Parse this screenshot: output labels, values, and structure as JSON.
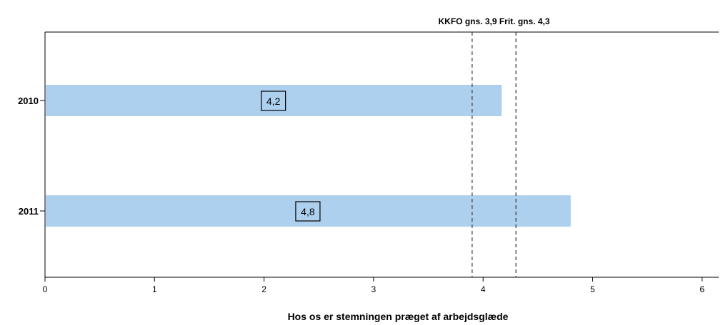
{
  "chart_data": {
    "type": "bar",
    "orientation": "horizontal",
    "categories": [
      "2010",
      "2011"
    ],
    "values": [
      4.17,
      4.8
    ],
    "data_labels": [
      "4,2",
      "4,8"
    ],
    "bar_color": "#aed0ef",
    "xlabel": "Hos os er stemningen præget af arbejdsglæde",
    "xlim": [
      0,
      6.2
    ],
    "xticks": [
      0,
      1,
      2,
      3,
      4,
      5,
      6
    ],
    "xtick_labels": [
      "0",
      "1",
      "2",
      "3",
      "4",
      "5",
      "6"
    ],
    "reference_lines": [
      {
        "value": 3.9,
        "style": "dashed"
      },
      {
        "value": 4.3,
        "style": "dashed"
      }
    ],
    "reference_note": "KKFO gns. 3,9  Frit. gns. 4,3",
    "grid": false
  }
}
